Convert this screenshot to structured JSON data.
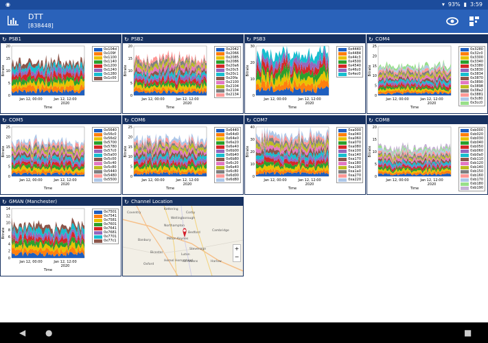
{
  "status": {
    "left_icon": "circle-notification-icon",
    "battery": "93%",
    "time": "3:59"
  },
  "app": {
    "title": "DTT",
    "subtitle": "[838448]",
    "actions": [
      "eye-icon",
      "dashboard-icon"
    ]
  },
  "colors": {
    "appbar": "#2a62ba",
    "panel_header": "#16305f",
    "status": "#1c4c9c"
  },
  "axis": {
    "y_label": "Bitrate",
    "x_label": "Time",
    "x_tick_1": "Jan 12, 00:00",
    "x_tick_2": "Jan 12, 12:00",
    "x_tick_year": "2020"
  },
  "panels": [
    {
      "name": "PSB1",
      "ymax": 20,
      "yticks": [
        "0",
        "5",
        "10",
        "15",
        "20"
      ],
      "legend": [
        "0x104d",
        "0x109f",
        "0x1100",
        "0x1140",
        "0x1200",
        "0x1240",
        "0x1280",
        "0x1c00"
      ]
    },
    {
      "name": "PSB2",
      "ymax": 20,
      "yticks": [
        "0",
        "5",
        "10",
        "15",
        "20"
      ],
      "legend": [
        "0x2042",
        "0x2066",
        "0x2085",
        "0x2086",
        "0x20a6",
        "0x20c5",
        "0x20c1",
        "0x20fa",
        "0x2100",
        "0x2104",
        "0x2104",
        "0x2134"
      ]
    },
    {
      "name": "PSB3",
      "ymax": 30,
      "yticks": [
        "0",
        "10",
        "20",
        "30"
      ],
      "legend": [
        "0x4440",
        "0x4484",
        "0x44c3",
        "0x4500",
        "0x4540",
        "0x46c0",
        "0x4ec0"
      ]
    },
    {
      "name": "COM4",
      "ymax": 25,
      "yticks": [
        "0",
        "5",
        "10",
        "15",
        "20",
        "25"
      ],
      "legend": [
        "0x3280",
        "0x32c0",
        "0x3300",
        "0x3340",
        "0x3380",
        "0x3830",
        "0x3834",
        "0x3870",
        "0x3890",
        "0x3898",
        "0x38a2",
        "0x3881",
        "0x3c80",
        "0x3cc0"
      ]
    },
    {
      "name": "COM5",
      "ymax": 25,
      "yticks": [
        "0",
        "5",
        "10",
        "15",
        "20",
        "25"
      ],
      "legend": [
        "0x5640",
        "0x56c0",
        "0x56d2",
        "0x5700",
        "0x5780",
        "0x57c0",
        "0x5a00",
        "0x5c00",
        "0x5c40",
        "0x5c80",
        "0x5440",
        "0x5480",
        "0x5500"
      ]
    },
    {
      "name": "COM6",
      "ymax": 25,
      "yticks": [
        "0",
        "5",
        "10",
        "15",
        "20",
        "25"
      ],
      "legend": [
        "0x6440",
        "0x64d0",
        "0x64e0",
        "0x6e20",
        "0x6e40",
        "0x6b00",
        "0x6b40",
        "0x6b80",
        "0x6c20",
        "0x6e40",
        "0x6c80",
        "0x6d00",
        "0x6d80"
      ]
    },
    {
      "name": "COM7",
      "ymax": 40,
      "yticks": [
        "0",
        "10",
        "20",
        "30",
        "40"
      ],
      "legend": [
        "0xa000",
        "0xa040",
        "0xa060",
        "0xa070",
        "0xa080",
        "0xa100",
        "0xa140",
        "0xa170",
        "0xa180",
        "0xa190",
        "0xa1a0",
        "0xa270",
        "0xa220"
      ]
    },
    {
      "name": "COM8",
      "ymax": 20,
      "yticks": [
        "0",
        "5",
        "10",
        "15",
        "20"
      ],
      "legend": [
        "0xb000",
        "0xb020",
        "0xb030",
        "0xb040",
        "0xb050",
        "0xb060",
        "0xb0a0",
        "0xb110",
        "0xb120",
        "0xb140",
        "0xb150",
        "0xb160",
        "0xb170",
        "0xb180",
        "0xb190"
      ]
    },
    {
      "name": "GMAN (Manchester)",
      "ymax": 14,
      "yticks": [
        "0",
        "2",
        "4",
        "6",
        "8",
        "10",
        "12",
        "14"
      ],
      "legend": [
        "0x7501",
        "0x7541",
        "0x7581",
        "0x7601",
        "0x7641",
        "0x7681",
        "0x7701",
        "0x77c1"
      ]
    }
  ],
  "map_panel": {
    "name": "Channel Location",
    "places": [
      "Coventry",
      "Kettering",
      "Wellingborough",
      "Northampton",
      "Bedford",
      "Cambridge",
      "Milton Keynes",
      "Banbury",
      "Bicester",
      "Stevenage",
      "Luton",
      "Hemel Hempstead",
      "St Albans",
      "Harlow",
      "Oxford",
      "Corby"
    ],
    "zoom_in": "+",
    "zoom_out": "−"
  },
  "nav": [
    "back-icon",
    "home-icon",
    "overview-icon"
  ]
}
